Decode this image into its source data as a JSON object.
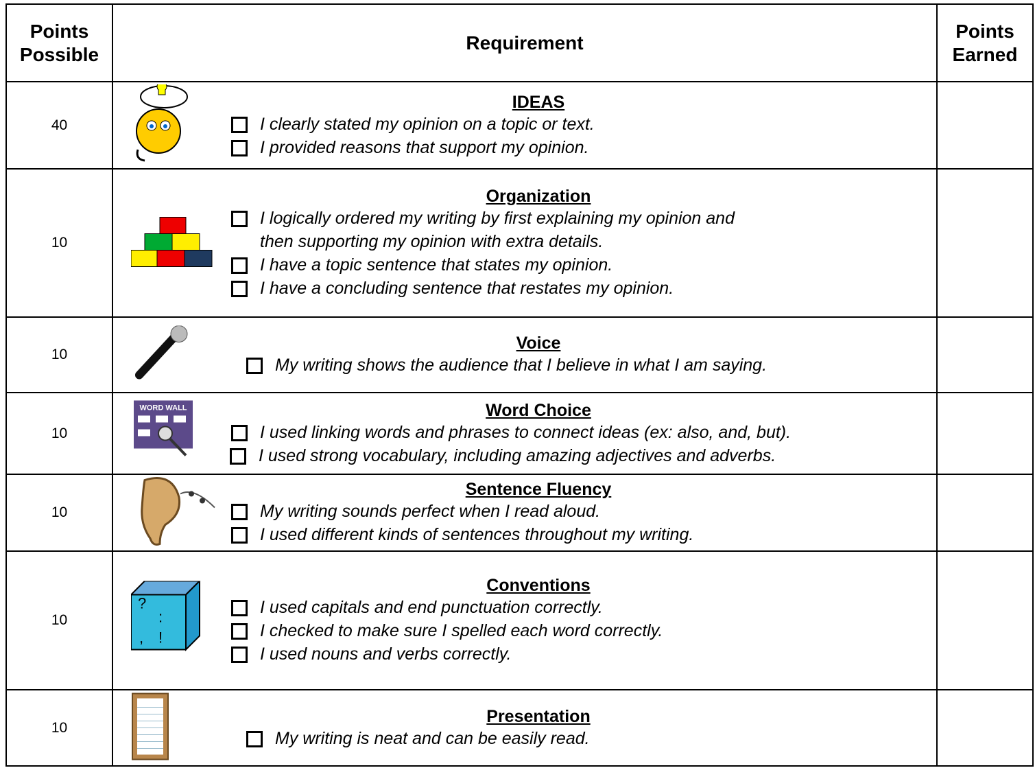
{
  "header": {
    "points_possible": "Points Possible",
    "requirement": "Requirement",
    "points_earned": "Points Earned"
  },
  "rows": [
    {
      "points": 40,
      "title": "IDEAS",
      "items": [
        "I clearly stated my opinion on a topic or text.",
        "I provided reasons that support my opinion."
      ]
    },
    {
      "points": 10,
      "title": "Organization",
      "items": [
        "I logically ordered my writing by first explaining my opinion and then supporting my opinion with extra details.",
        "I have a topic sentence that states my opinion.",
        "I have a concluding sentence that restates my opinion."
      ]
    },
    {
      "points": 10,
      "title": "Voice",
      "items": [
        "My writing shows the audience that I believe in what I am saying."
      ]
    },
    {
      "points": 10,
      "title": "Word Choice",
      "items": [
        "I used linking words and phrases to connect ideas (ex: also, and, but).",
        "I used strong vocabulary, including amazing adjectives and adverbs."
      ]
    },
    {
      "points": 10,
      "title": "Sentence Fluency",
      "items": [
        "My writing sounds perfect when I read aloud.",
        "I used different kinds of sentences throughout my writing."
      ]
    },
    {
      "points": 10,
      "title": "Conventions",
      "items": [
        "I used capitals and end punctuation correctly.",
        "I checked to make sure I spelled each word correctly.",
        "I used nouns and verbs correctly."
      ]
    },
    {
      "points": 10,
      "title": "Presentation",
      "items": [
        "My writing is neat and can be easily read."
      ]
    }
  ]
}
